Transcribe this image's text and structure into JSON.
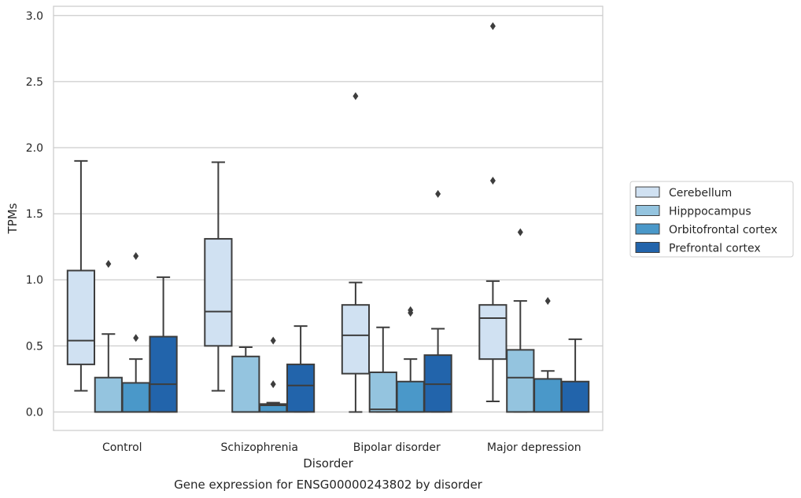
{
  "chart_data": {
    "type": "box",
    "title": "Gene expression for ENSG00000243802 by disorder",
    "xlabel": "Disorder",
    "ylabel": "TPMs",
    "ylim": [
      -0.14,
      3.07
    ],
    "yticks": [
      "0.0",
      "0.5",
      "1.0",
      "1.5",
      "2.0",
      "2.5",
      "3.0"
    ],
    "grid": true,
    "legend_position": "right",
    "categories": [
      "Control",
      "Schizophrenia",
      "Bipolar disorder",
      "Major depression"
    ],
    "series": [
      {
        "name": "Cerebellum",
        "color": "#d0e1f2",
        "boxes": [
          {
            "whisker_low": 0.16,
            "q1": 0.36,
            "median": 0.54,
            "q3": 1.07,
            "whisker_high": 1.9,
            "outliers": []
          },
          {
            "whisker_low": 0.16,
            "q1": 0.5,
            "median": 0.76,
            "q3": 1.31,
            "whisker_high": 1.89,
            "outliers": []
          },
          {
            "whisker_low": 0.0,
            "q1": 0.29,
            "median": 0.58,
            "q3": 0.81,
            "whisker_high": 0.98,
            "outliers": [
              2.39
            ]
          },
          {
            "whisker_low": 0.08,
            "q1": 0.4,
            "median": 0.71,
            "q3": 0.81,
            "whisker_high": 0.99,
            "outliers": [
              1.75,
              2.92
            ]
          }
        ]
      },
      {
        "name": "Hipppocampus",
        "color": "#94c4df",
        "boxes": [
          {
            "whisker_low": 0.0,
            "q1": 0.0,
            "median": 0.0,
            "q3": 0.26,
            "whisker_high": 0.59,
            "outliers": [
              1.12
            ]
          },
          {
            "whisker_low": 0.0,
            "q1": 0.0,
            "median": 0.0,
            "q3": 0.42,
            "whisker_high": 0.49,
            "outliers": []
          },
          {
            "whisker_low": 0.0,
            "q1": 0.0,
            "median": 0.02,
            "q3": 0.3,
            "whisker_high": 0.64,
            "outliers": []
          },
          {
            "whisker_low": 0.0,
            "q1": 0.0,
            "median": 0.26,
            "q3": 0.47,
            "whisker_high": 0.84,
            "outliers": [
              1.36
            ]
          }
        ]
      },
      {
        "name": "Orbitofrontal cortex",
        "color": "#4a98c9",
        "boxes": [
          {
            "whisker_low": 0.0,
            "q1": 0.0,
            "median": 0.0,
            "q3": 0.22,
            "whisker_high": 0.4,
            "outliers": [
              0.56,
              1.18
            ]
          },
          {
            "whisker_low": 0.0,
            "q1": 0.0,
            "median": 0.05,
            "q3": 0.06,
            "whisker_high": 0.07,
            "outliers": [
              0.21,
              0.54
            ]
          },
          {
            "whisker_low": 0.0,
            "q1": 0.0,
            "median": 0.0,
            "q3": 0.23,
            "whisker_high": 0.4,
            "outliers": [
              0.75,
              0.77
            ]
          },
          {
            "whisker_low": 0.0,
            "q1": 0.0,
            "median": 0.0,
            "q3": 0.25,
            "whisker_high": 0.31,
            "outliers": [
              0.84
            ]
          }
        ]
      },
      {
        "name": "Prefrontal cortex",
        "color": "#2264ab",
        "boxes": [
          {
            "whisker_low": 0.0,
            "q1": 0.0,
            "median": 0.21,
            "q3": 0.57,
            "whisker_high": 1.02,
            "outliers": []
          },
          {
            "whisker_low": 0.0,
            "q1": 0.0,
            "median": 0.2,
            "q3": 0.36,
            "whisker_high": 0.65,
            "outliers": []
          },
          {
            "whisker_low": 0.0,
            "q1": 0.0,
            "median": 0.21,
            "q3": 0.43,
            "whisker_high": 0.63,
            "outliers": [
              1.65
            ]
          },
          {
            "whisker_low": 0.0,
            "q1": 0.0,
            "median": 0.0,
            "q3": 0.23,
            "whisker_high": 0.55,
            "outliers": []
          }
        ]
      }
    ]
  }
}
